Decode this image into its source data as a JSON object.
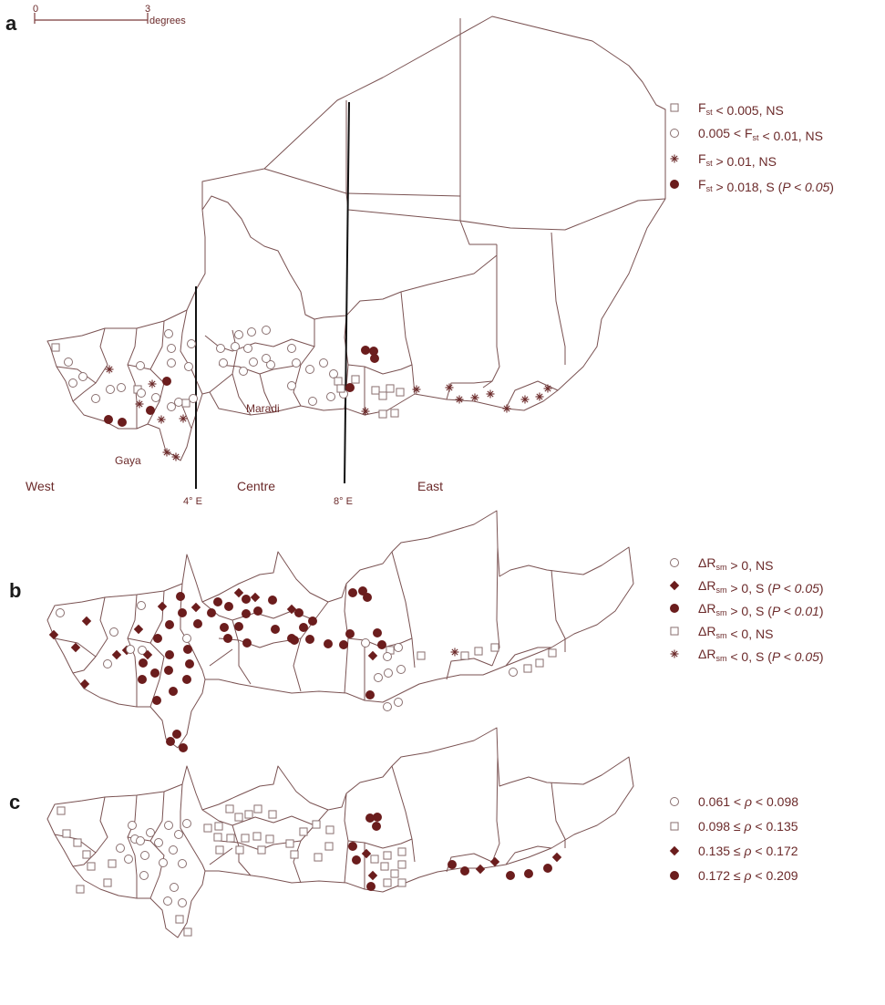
{
  "panels": {
    "a": {
      "letter": "a",
      "scale": {
        "start": "0",
        "end": "3",
        "unit": "degrees"
      },
      "regions": {
        "west": "West",
        "centre": "Centre",
        "east": "East"
      },
      "meridians": {
        "m4": "4° E",
        "m8": "8° E"
      },
      "places": {
        "maradi": "Maradi",
        "gaya": "Gaya"
      },
      "legend": [
        {
          "symbol": "square",
          "parts": [
            [
              "F",
              ""
            ],
            [
              "st",
              "sub"
            ],
            [
              "  < 0.005,  NS",
              ""
            ]
          ]
        },
        {
          "symbol": "circle",
          "parts": [
            [
              "0.005 < F",
              ""
            ],
            [
              "st",
              "sub"
            ],
            [
              " < 0.01, NS",
              ""
            ]
          ]
        },
        {
          "symbol": "star",
          "parts": [
            [
              "F",
              ""
            ],
            [
              "st",
              "sub"
            ],
            [
              " > 0.01, NS",
              ""
            ]
          ]
        },
        {
          "symbol": "dot",
          "parts": [
            [
              "F",
              ""
            ],
            [
              "st",
              "sub"
            ],
            [
              " > 0.018,  S (",
              ""
            ],
            [
              "P < 0.05",
              "italic"
            ],
            [
              ")",
              ""
            ]
          ]
        }
      ]
    },
    "b": {
      "letter": "b",
      "legend": [
        {
          "symbol": "circle",
          "parts": [
            [
              "ΔR",
              ""
            ],
            [
              "sm",
              "sub"
            ],
            [
              " > 0, NS",
              ""
            ]
          ]
        },
        {
          "symbol": "diamond",
          "parts": [
            [
              "ΔR",
              ""
            ],
            [
              "sm",
              "sub"
            ],
            [
              "  > 0,  S (",
              ""
            ],
            [
              "P < 0.05",
              "italic"
            ],
            [
              ")",
              ""
            ]
          ]
        },
        {
          "symbol": "dot",
          "parts": [
            [
              "ΔR",
              ""
            ],
            [
              "sm",
              "sub"
            ],
            [
              " > 0,  S (",
              ""
            ],
            [
              "P < 0.01",
              "italic"
            ],
            [
              ")",
              ""
            ]
          ]
        },
        {
          "symbol": "square",
          "parts": [
            [
              "ΔR",
              ""
            ],
            [
              "sm",
              "sub"
            ],
            [
              " < 0, NS",
              ""
            ]
          ]
        },
        {
          "symbol": "star",
          "parts": [
            [
              "ΔR",
              ""
            ],
            [
              "sm",
              "sub"
            ],
            [
              " < 0, S (",
              ""
            ],
            [
              "P < 0.05",
              "italic"
            ],
            [
              ")",
              ""
            ]
          ]
        }
      ]
    },
    "c": {
      "letter": "c",
      "legend": [
        {
          "symbol": "circle",
          "parts": [
            [
              "0.061 < ",
              ""
            ],
            [
              "ρ",
              "italic"
            ],
            [
              " < 0.098",
              ""
            ]
          ]
        },
        {
          "symbol": "square",
          "parts": [
            [
              "0.098 ≤ ",
              ""
            ],
            [
              "ρ",
              "italic"
            ],
            [
              " < 0.135",
              ""
            ]
          ]
        },
        {
          "symbol": "diamond",
          "parts": [
            [
              "0.135 ≤ ",
              ""
            ],
            [
              "ρ",
              "italic"
            ],
            [
              " < 0.172",
              ""
            ]
          ]
        },
        {
          "symbol": "dot",
          "parts": [
            [
              "0.172 ≤ ",
              ""
            ],
            [
              "ρ",
              "italic"
            ],
            [
              " < 0.209",
              ""
            ]
          ]
        }
      ]
    }
  },
  "colors": {
    "marker": "#6b1d1d",
    "border": "#7a5252",
    "text": "#6b2a2a"
  }
}
